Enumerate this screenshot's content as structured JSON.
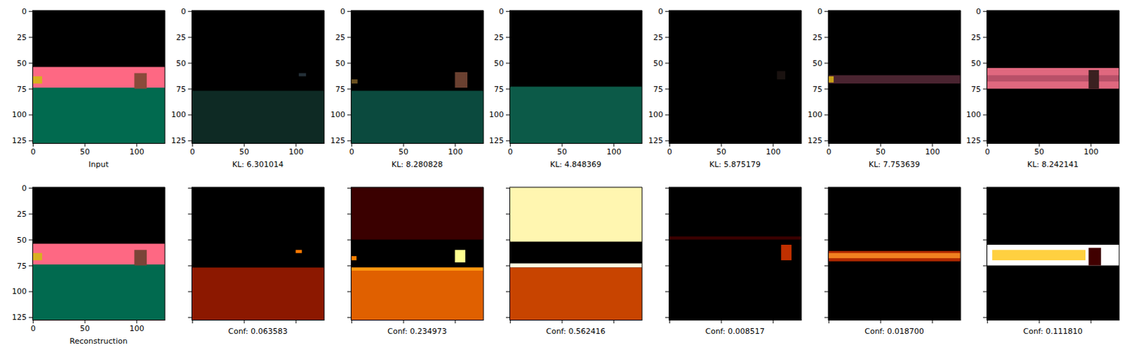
{
  "chart_data": [
    {
      "type": "image",
      "x_label": "Input",
      "xlim": [
        -0.5,
        127.5
      ],
      "ylim": [
        127.5,
        -0.5
      ],
      "xticks": [
        0,
        50,
        100
      ],
      "yticks": [
        0,
        25,
        50,
        75,
        100,
        125
      ],
      "regions": [
        {
          "x": [
            -0.5,
            127.5
          ],
          "y": [
            -0.5,
            127.5
          ],
          "color": "#000000"
        },
        {
          "x": [
            -0.5,
            127.5
          ],
          "y": [
            54,
            75
          ],
          "color": "#fe6883"
        },
        {
          "x": [
            -0.5,
            127.5
          ],
          "y": [
            74,
            127.5
          ],
          "color": "#016a4f"
        },
        {
          "x": [
            98,
            110
          ],
          "y": [
            60,
            75
          ],
          "color": "#8a4a3a"
        },
        {
          "x": [
            -0.5,
            9
          ],
          "y": [
            63,
            70
          ],
          "color": "#d8b020"
        }
      ]
    },
    {
      "type": "image",
      "x_label": "KL: 6.301014",
      "xlim": [
        -0.5,
        127.5
      ],
      "ylim": [
        127.5,
        -0.5
      ],
      "xticks": [
        0,
        50,
        100
      ],
      "yticks": [
        0,
        25,
        50,
        75,
        100,
        125
      ],
      "regions": [
        {
          "x": [
            -0.5,
            127.5
          ],
          "y": [
            -0.5,
            127.5
          ],
          "color": "#000000"
        },
        {
          "x": [
            -0.5,
            127.5
          ],
          "y": [
            77,
            127.5
          ],
          "color": "#0e2a24"
        },
        {
          "x": [
            103,
            110
          ],
          "y": [
            60,
            63
          ],
          "color": "#243038"
        }
      ]
    },
    {
      "type": "image",
      "x_label": "KL: 8.280828",
      "xlim": [
        -0.5,
        127.5
      ],
      "ylim": [
        127.5,
        -0.5
      ],
      "xticks": [
        0,
        50,
        100
      ],
      "yticks": [
        0,
        25,
        50,
        75,
        100,
        125
      ],
      "regions": [
        {
          "x": [
            -0.5,
            127.5
          ],
          "y": [
            -0.5,
            127.5
          ],
          "color": "#000000"
        },
        {
          "x": [
            -0.5,
            127.5
          ],
          "y": [
            77,
            127.5
          ],
          "color": "#0b4a3e"
        },
        {
          "x": [
            100,
            112
          ],
          "y": [
            59,
            74
          ],
          "color": "#6a4030"
        },
        {
          "x": [
            -0.5,
            6
          ],
          "y": [
            66,
            70
          ],
          "color": "#6a5020"
        }
      ]
    },
    {
      "type": "image",
      "x_label": "KL: 4.848369",
      "xlim": [
        -0.5,
        127.5
      ],
      "ylim": [
        127.5,
        -0.5
      ],
      "xticks": [
        0,
        50,
        100
      ],
      "yticks": [
        0,
        25,
        50,
        75,
        100,
        125
      ],
      "regions": [
        {
          "x": [
            -0.5,
            127.5
          ],
          "y": [
            -0.5,
            127.5
          ],
          "color": "#000000"
        },
        {
          "x": [
            -0.5,
            127.5
          ],
          "y": [
            73,
            127.5
          ],
          "color": "#0c5a48"
        }
      ]
    },
    {
      "type": "image",
      "x_label": "KL: 5.875179",
      "xlim": [
        -0.5,
        127.5
      ],
      "ylim": [
        127.5,
        -0.5
      ],
      "xticks": [
        0,
        50,
        100
      ],
      "yticks": [
        0,
        25,
        50,
        75,
        100,
        125
      ],
      "regions": [
        {
          "x": [
            -0.5,
            127.5
          ],
          "y": [
            -0.5,
            127.5
          ],
          "color": "#000000"
        },
        {
          "x": [
            104,
            112
          ],
          "y": [
            58,
            66
          ],
          "color": "#1a1210"
        }
      ]
    },
    {
      "type": "image",
      "x_label": "KL: 7.753639",
      "xlim": [
        -0.5,
        127.5
      ],
      "ylim": [
        127.5,
        -0.5
      ],
      "xticks": [
        0,
        50,
        100
      ],
      "yticks": [
        0,
        25,
        50,
        75,
        100,
        125
      ],
      "regions": [
        {
          "x": [
            -0.5,
            127.5
          ],
          "y": [
            -0.5,
            127.5
          ],
          "color": "#000000"
        },
        {
          "x": [
            -0.5,
            127.5
          ],
          "y": [
            62,
            70
          ],
          "color": "#4a2430"
        },
        {
          "x": [
            -0.5,
            5
          ],
          "y": [
            63,
            69
          ],
          "color": "#c8a018"
        }
      ]
    },
    {
      "type": "image",
      "x_label": "KL: 8.242141",
      "xlim": [
        -0.5,
        127.5
      ],
      "ylim": [
        127.5,
        -0.5
      ],
      "xticks": [
        0,
        50,
        100
      ],
      "yticks": [
        0,
        25,
        50,
        75,
        100,
        125
      ],
      "regions": [
        {
          "x": [
            -0.5,
            127.5
          ],
          "y": [
            -0.5,
            127.5
          ],
          "color": "#000000"
        },
        {
          "x": [
            -0.5,
            127.5
          ],
          "y": [
            55,
            75
          ],
          "color": "#e0687f"
        },
        {
          "x": [
            -0.5,
            127.5
          ],
          "y": [
            62,
            68
          ],
          "color": "#b85068"
        },
        {
          "x": [
            98,
            108
          ],
          "y": [
            57,
            75
          ],
          "color": "#3a2020"
        }
      ]
    },
    {
      "type": "image",
      "x_label": "Reconstruction",
      "xlim": [
        -0.5,
        127.5
      ],
      "ylim": [
        127.5,
        -0.5
      ],
      "xticks": [
        0,
        50,
        100
      ],
      "yticks": [
        0,
        25,
        50,
        75,
        100,
        125
      ],
      "regions": [
        {
          "x": [
            -0.5,
            127.5
          ],
          "y": [
            -0.5,
            127.5
          ],
          "color": "#000000"
        },
        {
          "x": [
            -0.5,
            127.5
          ],
          "y": [
            54,
            75
          ],
          "color": "#fe6883"
        },
        {
          "x": [
            -0.5,
            127.5
          ],
          "y": [
            74,
            127.5
          ],
          "color": "#016a4f"
        },
        {
          "x": [
            98,
            110
          ],
          "y": [
            60,
            75
          ],
          "color": "#7a4438"
        },
        {
          "x": [
            -0.5,
            9
          ],
          "y": [
            63,
            70
          ],
          "color": "#d8b020"
        }
      ]
    },
    {
      "type": "image",
      "x_label": "Conf: 0.063583",
      "xlim": [
        -0.5,
        127.5
      ],
      "ylim": [
        127.5,
        -0.5
      ],
      "xticks": [
        0,
        50,
        100
      ],
      "yticks": [
        0,
        25,
        50,
        75,
        100,
        125
      ],
      "tick_labels": false,
      "regions": [
        {
          "x": [
            -0.5,
            127.5
          ],
          "y": [
            -0.5,
            127.5
          ],
          "color": "#000000"
        },
        {
          "x": [
            -0.5,
            127.5
          ],
          "y": [
            77,
            127.5
          ],
          "color": "#8c1800"
        },
        {
          "x": [
            100,
            106
          ],
          "y": [
            60,
            63
          ],
          "color": "#ff7a00"
        }
      ]
    },
    {
      "type": "image",
      "x_label": "Conf: 0.234973",
      "xlim": [
        -0.5,
        127.5
      ],
      "ylim": [
        127.5,
        -0.5
      ],
      "xticks": [
        0,
        50,
        100
      ],
      "yticks": [
        0,
        25,
        50,
        75,
        100,
        125
      ],
      "tick_labels": false,
      "regions": [
        {
          "x": [
            -0.5,
            127.5
          ],
          "y": [
            -0.5,
            127.5
          ],
          "color": "#000000"
        },
        {
          "x": [
            -0.5,
            127.5
          ],
          "y": [
            -0.5,
            50
          ],
          "color": "#3a0000"
        },
        {
          "x": [
            -0.5,
            127.5
          ],
          "y": [
            77,
            127.5
          ],
          "color": "#e06000"
        },
        {
          "x": [
            -0.5,
            127.5
          ],
          "y": [
            77,
            80
          ],
          "color": "#ff9a10"
        },
        {
          "x": [
            100,
            110
          ],
          "y": [
            60,
            72
          ],
          "color": "#ffff90"
        },
        {
          "x": [
            -0.5,
            5
          ],
          "y": [
            66,
            70
          ],
          "color": "#ff8000"
        }
      ]
    },
    {
      "type": "image",
      "x_label": "Conf: 0.562416",
      "xlim": [
        -0.5,
        127.5
      ],
      "ylim": [
        127.5,
        -0.5
      ],
      "xticks": [
        0,
        50,
        100
      ],
      "yticks": [
        0,
        25,
        50,
        75,
        100,
        125
      ],
      "tick_labels": false,
      "regions": [
        {
          "x": [
            -0.5,
            127.5
          ],
          "y": [
            -0.5,
            127.5
          ],
          "color": "#000000"
        },
        {
          "x": [
            -0.5,
            127.5
          ],
          "y": [
            -0.5,
            52
          ],
          "color": "#fff6b0"
        },
        {
          "x": [
            -0.5,
            127.5
          ],
          "y": [
            73,
            77
          ],
          "color": "#fffbe0"
        },
        {
          "x": [
            -0.5,
            127.5
          ],
          "y": [
            77,
            127.5
          ],
          "color": "#c84400"
        }
      ]
    },
    {
      "type": "image",
      "x_label": "Conf: 0.008517",
      "xlim": [
        -0.5,
        127.5
      ],
      "ylim": [
        127.5,
        -0.5
      ],
      "xticks": [
        0,
        50,
        100
      ],
      "yticks": [
        0,
        25,
        50,
        75,
        100,
        125
      ],
      "tick_labels": false,
      "regions": [
        {
          "x": [
            -0.5,
            127.5
          ],
          "y": [
            -0.5,
            127.5
          ],
          "color": "#000000"
        },
        {
          "x": [
            -0.5,
            127.5
          ],
          "y": [
            47,
            50
          ],
          "color": "#3a0000"
        },
        {
          "x": [
            108,
            118
          ],
          "y": [
            55,
            70
          ],
          "color": "#c03000"
        }
      ]
    },
    {
      "type": "image",
      "x_label": "Conf: 0.018700",
      "xlim": [
        -0.5,
        127.5
      ],
      "ylim": [
        127.5,
        -0.5
      ],
      "xticks": [
        0,
        50,
        100
      ],
      "yticks": [
        0,
        25,
        50,
        75,
        100,
        125
      ],
      "tick_labels": false,
      "regions": [
        {
          "x": [
            -0.5,
            127.5
          ],
          "y": [
            -0.5,
            127.5
          ],
          "color": "#000000"
        },
        {
          "x": [
            -0.5,
            127.5
          ],
          "y": [
            61,
            71
          ],
          "color": "#b02800"
        },
        {
          "x": [
            -0.5,
            127.5
          ],
          "y": [
            63,
            68
          ],
          "color": "#f08020"
        }
      ]
    },
    {
      "type": "image",
      "x_label": "Conf: 0.111810",
      "xlim": [
        -0.5,
        127.5
      ],
      "ylim": [
        127.5,
        -0.5
      ],
      "xticks": [
        0,
        50,
        100
      ],
      "yticks": [
        0,
        25,
        50,
        75,
        100,
        125
      ],
      "tick_labels": false,
      "regions": [
        {
          "x": [
            -0.5,
            127.5
          ],
          "y": [
            -0.5,
            127.5
          ],
          "color": "#000000"
        },
        {
          "x": [
            -0.5,
            127.5
          ],
          "y": [
            55,
            75
          ],
          "color": "#ffffff"
        },
        {
          "x": [
            5,
            95
          ],
          "y": [
            60,
            70
          ],
          "color": "#ffd040"
        },
        {
          "x": [
            98,
            110
          ],
          "y": [
            58,
            75
          ],
          "color": "#400000"
        }
      ]
    }
  ]
}
